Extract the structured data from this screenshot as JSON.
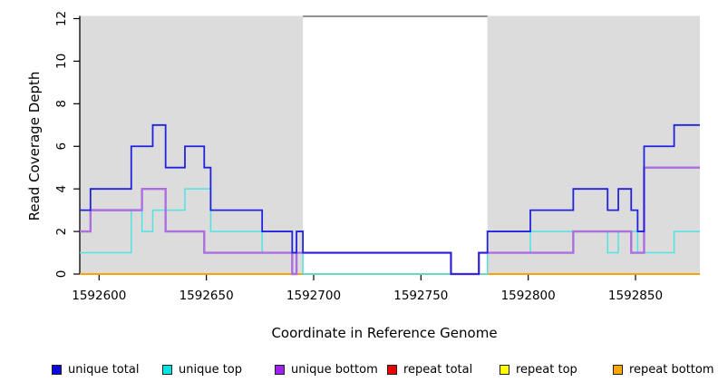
{
  "chart_data": {
    "type": "line",
    "subtype": "step",
    "title": "",
    "xlabel": "Coordinate in Reference Genome",
    "ylabel": "Read Coverage Depth",
    "xlim": [
      1592591,
      1592880
    ],
    "ylim": [
      0,
      12
    ],
    "x_ticks": [
      1592600,
      1592650,
      1592700,
      1592750,
      1592800,
      1592850
    ],
    "y_ticks": [
      0,
      2,
      4,
      6,
      8,
      10,
      12
    ],
    "grid": "off",
    "shaded_regions": {
      "color": "#dcdcdc",
      "ranges": [
        [
          1592591,
          1592695
        ],
        [
          1592781,
          1592880
        ]
      ]
    },
    "box_top_gap_segment": {
      "range": [
        1592695,
        1592781
      ],
      "color": "#4d4d4d"
    },
    "zero_line_overlap": {
      "range": [
        1592695,
        1592781
      ],
      "color": "#95d49b"
    },
    "series": [
      {
        "name": "repeat total",
        "color": "#e60000",
        "width": 1.4,
        "draw_order": 1,
        "steps": [
          [
            1592591,
            0
          ],
          [
            1592880,
            0
          ]
        ]
      },
      {
        "name": "repeat top",
        "color": "#f5f500",
        "width": 1.4,
        "draw_order": 2,
        "steps": [
          [
            1592591,
            0
          ],
          [
            1592880,
            0
          ]
        ]
      },
      {
        "name": "repeat bottom",
        "color": "#ffa200",
        "width": 1.8,
        "draw_order": 3,
        "steps": [
          [
            1592591,
            0
          ],
          [
            1592880,
            0
          ]
        ]
      },
      {
        "name": "unique top",
        "color": "#4fe3e3",
        "width": 1.5,
        "draw_order": 4,
        "steps": [
          [
            1592591,
            1
          ],
          [
            1592615,
            3
          ],
          [
            1592620,
            2
          ],
          [
            1592625,
            3
          ],
          [
            1592640,
            4
          ],
          [
            1592652,
            2
          ],
          [
            1592676,
            1
          ],
          [
            1592695,
            0
          ],
          [
            1592781,
            1
          ],
          [
            1592801,
            2
          ],
          [
            1592837,
            1
          ],
          [
            1592842,
            2
          ],
          [
            1592851,
            1
          ],
          [
            1592868,
            2
          ],
          [
            1592880,
            2
          ]
        ]
      },
      {
        "name": "unique bottom",
        "color": "#ab6fe0",
        "width": 2.4,
        "draw_order": 5,
        "steps": [
          [
            1592591,
            2
          ],
          [
            1592596,
            3
          ],
          [
            1592620,
            4
          ],
          [
            1592631,
            2
          ],
          [
            1592649,
            1
          ],
          [
            1592690,
            0
          ],
          [
            1592692,
            1
          ],
          [
            1592764,
            0
          ],
          [
            1592777,
            1
          ],
          [
            1592821,
            2
          ],
          [
            1592848,
            1
          ],
          [
            1592854,
            5
          ],
          [
            1592880,
            5
          ]
        ]
      },
      {
        "name": "unique total",
        "color": "#2222dd",
        "width": 1.8,
        "draw_order": 6,
        "steps": [
          [
            1592591,
            3
          ],
          [
            1592596,
            4
          ],
          [
            1592615,
            6
          ],
          [
            1592625,
            7
          ],
          [
            1592631,
            5
          ],
          [
            1592640,
            6
          ],
          [
            1592649,
            5
          ],
          [
            1592652,
            3
          ],
          [
            1592676,
            2
          ],
          [
            1592690,
            1
          ],
          [
            1592692,
            2
          ],
          [
            1592695,
            1
          ],
          [
            1592764,
            0
          ],
          [
            1592777,
            1
          ],
          [
            1592781,
            2
          ],
          [
            1592801,
            3
          ],
          [
            1592821,
            4
          ],
          [
            1592837,
            3
          ],
          [
            1592842,
            4
          ],
          [
            1592848,
            3
          ],
          [
            1592851,
            2
          ],
          [
            1592854,
            6
          ],
          [
            1592868,
            7
          ],
          [
            1592880,
            7
          ]
        ]
      }
    ],
    "legend_position": "bottom"
  },
  "legend": {
    "items": [
      {
        "label": "unique total",
        "color": "#0a0ae0"
      },
      {
        "label": "unique top",
        "color": "#00e5e5"
      },
      {
        "label": "unique bottom",
        "color": "#a020f0"
      },
      {
        "label": "repeat total",
        "color": "#ee0000"
      },
      {
        "label": "repeat top",
        "color": "#ffff00"
      },
      {
        "label": "repeat bottom",
        "color": "#ffa500"
      }
    ]
  },
  "axes": {
    "x_title": "Coordinate in Reference Genome",
    "y_title": "Read Coverage Depth",
    "axis_color": "#000000"
  }
}
